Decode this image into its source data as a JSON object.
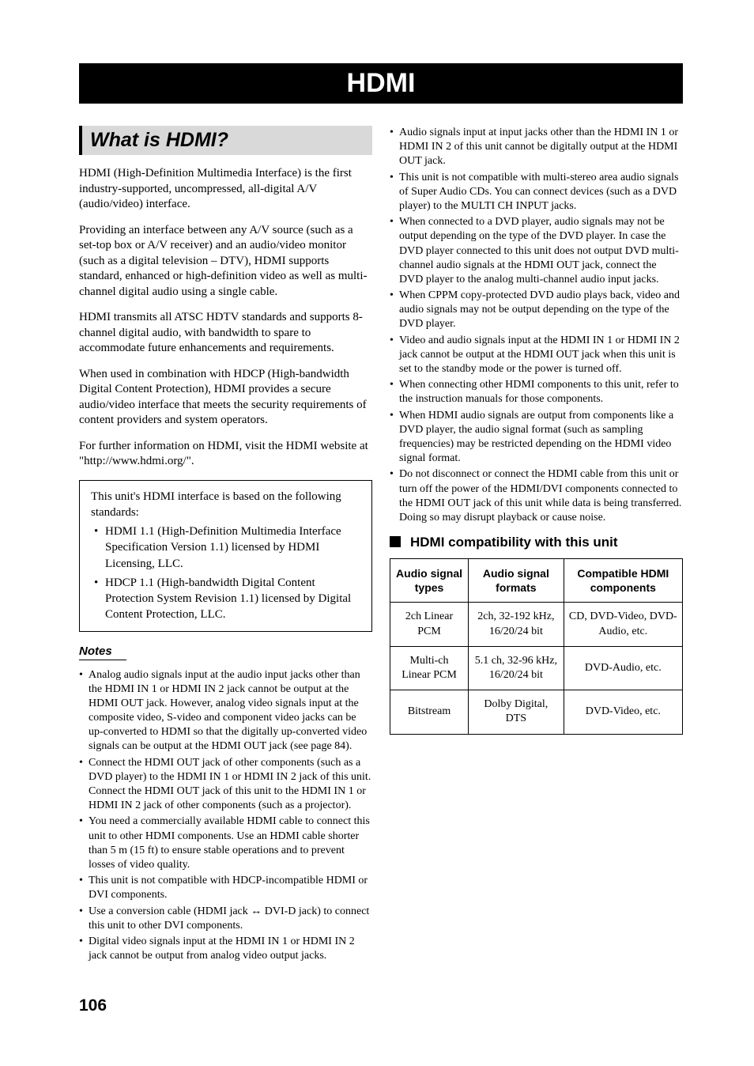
{
  "banner_title": "HDMI",
  "section_heading": "What is HDMI?",
  "paragraphs": [
    "HDMI (High-Definition Multimedia Interface) is the first industry-supported, uncompressed, all-digital A/V (audio/video) interface.",
    "Providing an interface between any A/V source (such as a set-top box or A/V receiver) and an audio/video monitor (such as a digital television – DTV), HDMI supports standard, enhanced or high-definition video as well as multi-channel digital audio using a single cable.",
    "HDMI transmits all ATSC HDTV standards and supports 8-channel digital audio, with bandwidth to spare to accommodate future enhancements and requirements.",
    "When used in combination with HDCP (High-bandwidth Digital Content Protection), HDMI provides a secure audio/video interface that meets the security requirements of content providers and system operators.",
    "For further information on HDMI, visit the HDMI website at \"http://www.hdmi.org/\"."
  ],
  "standards_intro": "This unit's HDMI interface is based on the following standards:",
  "standards": [
    "HDMI 1.1 (High-Definition Multimedia Interface Specification Version 1.1) licensed by HDMI Licensing, LLC.",
    "HDCP 1.1 (High-bandwidth Digital Content Protection System Revision 1.1) licensed by Digital Content Protection, LLC."
  ],
  "notes_heading": "Notes",
  "notes_left": [
    "Analog audio signals input at the audio input jacks other than the HDMI IN 1 or HDMI IN 2 jack cannot be output at the HDMI OUT jack. However, analog video signals input at the composite video, S-video and component video jacks can be up-converted to HDMI so that the digitally up-converted video signals can be output at the HDMI OUT jack (see page 84).",
    "Connect the HDMI OUT jack of other components (such as a DVD player) to the HDMI IN 1 or HDMI IN 2 jack of this unit. Connect the HDMI OUT jack of this unit to the HDMI IN 1 or HDMI IN 2 jack of other components (such as a projector).",
    "You need a commercially available HDMI cable to connect this unit to other HDMI components. Use an HDMI cable shorter than 5 m (15 ft) to ensure stable operations and to prevent losses of video quality.",
    "This unit is not compatible with HDCP-incompatible HDMI or DVI components.",
    "Use a conversion cable (HDMI jack ↔ DVI-D jack) to connect this unit to other DVI components.",
    "Digital video signals input at the HDMI IN 1 or HDMI IN 2 jack cannot be output from analog video output jacks."
  ],
  "notes_right": [
    "Audio signals input at input jacks other than the HDMI IN 1 or HDMI IN 2 of this unit cannot be digitally output at the HDMI OUT jack.",
    "This unit is not compatible with multi-stereo area audio signals of Super Audio CDs. You can connect devices (such as a DVD player) to the MULTI CH INPUT jacks.",
    "When connected to a DVD player, audio signals may not be output depending on the type of the DVD player. In case the DVD player connected to this unit does not output DVD multi-channel audio signals at the HDMI OUT jack, connect the DVD player to the analog multi-channel audio input jacks.",
    "When CPPM copy-protected DVD audio plays back, video and audio signals may not be output depending on the type of the DVD player.",
    "Video and audio signals input at the HDMI IN 1 or HDMI IN 2 jack cannot be output at the HDMI OUT jack when this unit is set to the standby mode or the power is turned off.",
    "When connecting other HDMI components to this unit, refer to the instruction manuals for those components.",
    "When HDMI audio signals are output from components like a DVD player, the audio signal format (such as sampling frequencies) may be restricted depending on the HDMI video signal format.",
    "Do not disconnect or connect the HDMI cable from this unit or turn off the power of the HDMI/DVI components connected to the HDMI OUT jack of this unit while data is being transferred. Doing so may disrupt playback or cause noise."
  ],
  "compat_heading": "HDMI compatibility with this unit",
  "table": {
    "headers": [
      "Audio signal types",
      "Audio signal formats",
      "Compatible HDMI components"
    ],
    "rows": [
      [
        "2ch Linear PCM",
        "2ch, 32-192 kHz, 16/20/24 bit",
        "CD, DVD-Video, DVD-Audio, etc."
      ],
      [
        "Multi-ch Linear PCM",
        "5.1 ch, 32-96 kHz, 16/20/24 bit",
        "DVD-Audio, etc."
      ],
      [
        "Bitstream",
        "Dolby Digital, DTS",
        "DVD-Video, etc."
      ]
    ]
  },
  "page_number": "106"
}
